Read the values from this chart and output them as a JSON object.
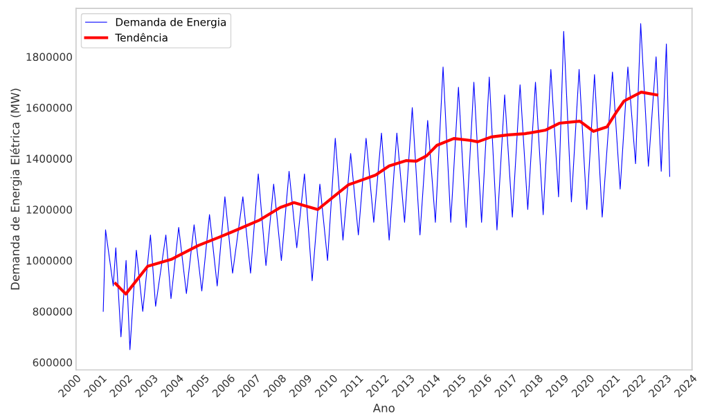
{
  "chart_data": {
    "type": "line",
    "xlabel": "Ano",
    "ylabel": "Demanda de Energia Elétrica (MW)",
    "xlim": [
      2000,
      2024
    ],
    "xticks": [
      2000,
      2001,
      2002,
      2003,
      2004,
      2005,
      2006,
      2007,
      2008,
      2009,
      2010,
      2011,
      2012,
      2013,
      2014,
      2015,
      2016,
      2017,
      2018,
      2019,
      2020,
      2021,
      2022,
      2023,
      2024
    ],
    "ylim": [
      570000,
      1990000
    ],
    "yticks": [
      600000,
      800000,
      1000000,
      1200000,
      1400000,
      1600000,
      1800000
    ],
    "grid": false,
    "legend": "top left",
    "series": [
      {
        "name": "Demanda de Energia",
        "color": "#0000ff",
        "x": [
          2001.06,
          2001.15,
          2001.45,
          2001.55,
          2001.75,
          2001.95,
          2002.1,
          2002.35,
          2002.6,
          2002.9,
          2003.1,
          2003.5,
          2003.7,
          2004.0,
          2004.3,
          2004.6,
          2004.9,
          2005.2,
          2005.5,
          2005.8,
          2006.1,
          2006.5,
          2006.8,
          2007.1,
          2007.4,
          2007.7,
          2008.0,
          2008.3,
          2008.6,
          2008.9,
          2009.2,
          2009.5,
          2009.8,
          2010.1,
          2010.4,
          2010.7,
          2011.0,
          2011.3,
          2011.6,
          2011.9,
          2012.2,
          2012.5,
          2012.8,
          2013.1,
          2013.4,
          2013.7,
          2014.0,
          2014.3,
          2014.6,
          2014.9,
          2015.2,
          2015.5,
          2015.8,
          2016.1,
          2016.4,
          2016.7,
          2017.0,
          2017.3,
          2017.6,
          2017.9,
          2018.2,
          2018.5,
          2018.8,
          2019.0,
          2019.3,
          2019.6,
          2019.9,
          2020.2,
          2020.5,
          2020.9,
          2021.2,
          2021.5,
          2021.8,
          2022.0,
          2022.3,
          2022.6,
          2022.8,
          2023.0,
          2023.13
        ],
        "values": [
          800000,
          1120000,
          900000,
          1050000,
          700000,
          1000000,
          650000,
          1040000,
          800000,
          1100000,
          820000,
          1100000,
          850000,
          1130000,
          870000,
          1140000,
          880000,
          1180000,
          900000,
          1250000,
          950000,
          1250000,
          950000,
          1340000,
          980000,
          1300000,
          1000000,
          1350000,
          1050000,
          1340000,
          920000,
          1300000,
          1000000,
          1480000,
          1080000,
          1420000,
          1100000,
          1480000,
          1150000,
          1500000,
          1080000,
          1500000,
          1150000,
          1600000,
          1100000,
          1550000,
          1150000,
          1760000,
          1150000,
          1680000,
          1130000,
          1700000,
          1150000,
          1720000,
          1120000,
          1650000,
          1170000,
          1690000,
          1200000,
          1700000,
          1180000,
          1750000,
          1250000,
          1900000,
          1230000,
          1750000,
          1200000,
          1730000,
          1170000,
          1740000,
          1280000,
          1760000,
          1380000,
          1930000,
          1370000,
          1800000,
          1350000,
          1850000,
          1330000
        ]
      },
      {
        "name": "Tendência",
        "color": "#ff0000",
        "x": [
          2001.54,
          2001.94,
          2002.79,
          2003.71,
          2004.77,
          2005.57,
          2006.1,
          2007.16,
          2007.96,
          2008.49,
          2009.42,
          2010.08,
          2010.61,
          2011.67,
          2012.2,
          2012.87,
          2013.26,
          2013.66,
          2014.06,
          2014.72,
          2015.39,
          2015.65,
          2016.18,
          2016.84,
          2017.5,
          2018.3,
          2018.83,
          2019.63,
          2020.16,
          2020.69,
          2021.09,
          2021.35,
          2022.02,
          2022.63
        ],
        "values": [
          909000,
          868000,
          977000,
          1004000,
          1059000,
          1091000,
          1113000,
          1159000,
          1208000,
          1227000,
          1200000,
          1254000,
          1297000,
          1335000,
          1371000,
          1392000,
          1390000,
          1411000,
          1452000,
          1479000,
          1471000,
          1466000,
          1485000,
          1493000,
          1498000,
          1512000,
          1539000,
          1547000,
          1507000,
          1525000,
          1588000,
          1626000,
          1661000,
          1650000
        ]
      }
    ]
  }
}
